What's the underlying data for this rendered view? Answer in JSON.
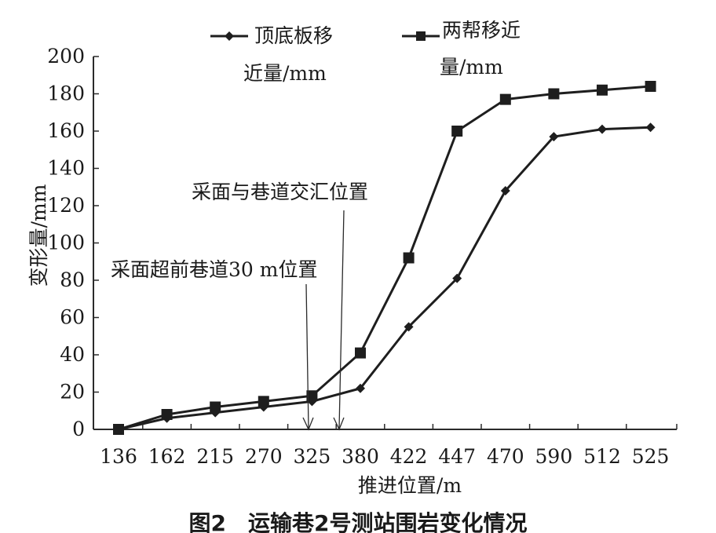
{
  "chart_data": {
    "type": "line",
    "categories": [
      "136",
      "162",
      "215",
      "270",
      "325",
      "380",
      "422",
      "447",
      "470",
      "590",
      "512",
      "525"
    ],
    "series": [
      {
        "name": "顶底板移近量/mm",
        "marker": "diamond",
        "values": [
          0,
          6,
          9,
          12,
          15,
          22,
          55,
          81,
          128,
          157,
          161,
          162
        ]
      },
      {
        "name": "两帮移近量/mm",
        "marker": "square",
        "values": [
          0,
          8,
          12,
          15,
          18,
          41,
          92,
          160,
          177,
          180,
          182,
          184
        ]
      }
    ],
    "ylabel": "变形量/mm",
    "xlabel": "推进位置/m",
    "ylim": [
      0,
      200
    ],
    "yticks": [
      0,
      20,
      40,
      60,
      80,
      100,
      120,
      140,
      160,
      180,
      200
    ],
    "legend_position": "top",
    "legend": [
      {
        "line1": "顶底板移",
        "line2": "近量/mm"
      },
      {
        "line1": "两帮移近",
        "line2": "量/mm"
      }
    ],
    "annotations": [
      {
        "text": "采面超前巷道30 m位置",
        "x_position": 325
      },
      {
        "text": "采面与巷道交汇位置",
        "x_position": 352
      }
    ],
    "caption": "图2　运输巷2号测站围岩变化情况",
    "grid": false
  }
}
